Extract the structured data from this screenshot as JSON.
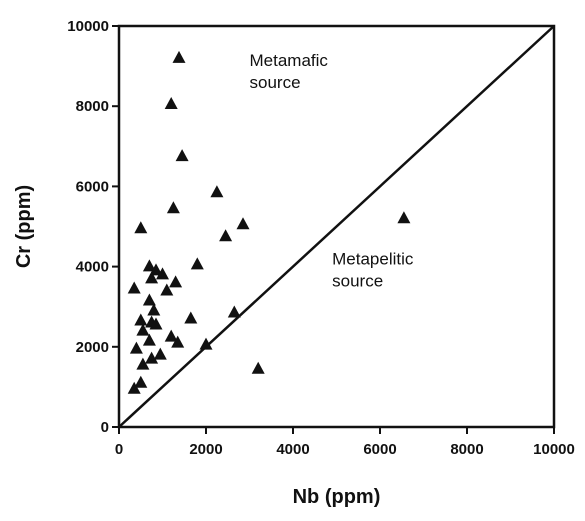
{
  "chart_data": {
    "type": "scatter",
    "title": "",
    "xlabel": "Nb (ppm)",
    "ylabel": "Cr (ppm)",
    "xlim": [
      0,
      10000
    ],
    "ylim": [
      0,
      10000
    ],
    "x_ticks": [
      0,
      2000,
      4000,
      6000,
      8000,
      10000
    ],
    "y_ticks": [
      0,
      2000,
      4000,
      6000,
      8000,
      10000
    ],
    "x_tick_labels": [
      "0",
      "2000",
      "4000",
      "6000",
      "8000",
      "10000"
    ],
    "y_tick_labels": [
      "0",
      "2000",
      "4000",
      "6000",
      "8000",
      "10000"
    ],
    "grid": false,
    "marker": "filled-triangle",
    "marker_color": "#111111",
    "series": [
      {
        "points": [
          {
            "x": 1380,
            "y": 9200
          },
          {
            "x": 1200,
            "y": 8050
          },
          {
            "x": 1450,
            "y": 6750
          },
          {
            "x": 2250,
            "y": 5850
          },
          {
            "x": 1250,
            "y": 5450
          },
          {
            "x": 2850,
            "y": 5050
          },
          {
            "x": 500,
            "y": 4950
          },
          {
            "x": 2450,
            "y": 4750
          },
          {
            "x": 6550,
            "y": 5200
          },
          {
            "x": 1800,
            "y": 4050
          },
          {
            "x": 700,
            "y": 4000
          },
          {
            "x": 850,
            "y": 3900
          },
          {
            "x": 1000,
            "y": 3800
          },
          {
            "x": 750,
            "y": 3700
          },
          {
            "x": 1300,
            "y": 3600
          },
          {
            "x": 350,
            "y": 3450
          },
          {
            "x": 1100,
            "y": 3400
          },
          {
            "x": 700,
            "y": 3150
          },
          {
            "x": 800,
            "y": 2900
          },
          {
            "x": 2650,
            "y": 2850
          },
          {
            "x": 1650,
            "y": 2700
          },
          {
            "x": 500,
            "y": 2650
          },
          {
            "x": 750,
            "y": 2600
          },
          {
            "x": 850,
            "y": 2550
          },
          {
            "x": 550,
            "y": 2400
          },
          {
            "x": 1200,
            "y": 2250
          },
          {
            "x": 700,
            "y": 2150
          },
          {
            "x": 1350,
            "y": 2100
          },
          {
            "x": 2000,
            "y": 2050
          },
          {
            "x": 400,
            "y": 1950
          },
          {
            "x": 950,
            "y": 1800
          },
          {
            "x": 750,
            "y": 1700
          },
          {
            "x": 550,
            "y": 1550
          },
          {
            "x": 3200,
            "y": 1450
          },
          {
            "x": 500,
            "y": 1100
          },
          {
            "x": 350,
            "y": 950
          }
        ]
      }
    ],
    "reference_line": {
      "from": [
        0,
        0
      ],
      "to": [
        10000,
        10000
      ]
    },
    "annotations": [
      {
        "lines": [
          "Metamafic",
          "source"
        ],
        "x": 3000,
        "y": 9000
      },
      {
        "lines": [
          "Metapelitic",
          "source"
        ],
        "x": 4900,
        "y": 4050
      }
    ]
  }
}
